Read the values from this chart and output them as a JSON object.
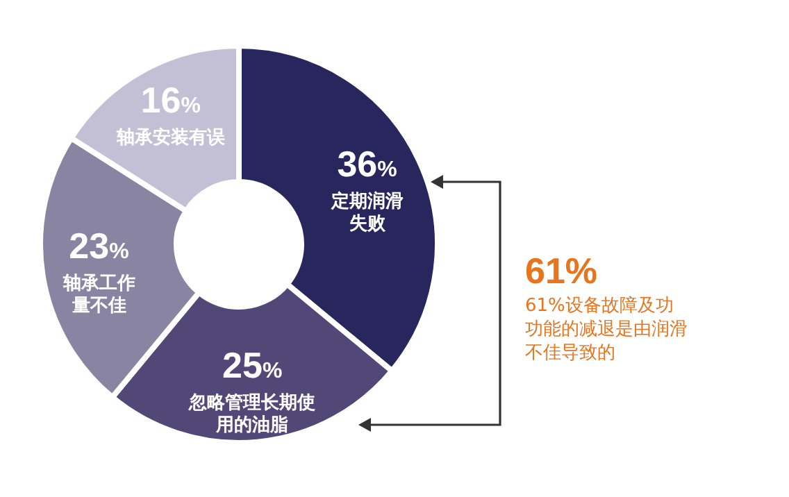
{
  "chart_data": {
    "type": "donut",
    "categories": [
      "定期润滑失败",
      "忽略管理长期使用的油脂",
      "轴承工作量不佳",
      "轴承安装有误"
    ],
    "values": [
      36,
      25,
      23,
      16
    ],
    "value_labels": [
      "36%",
      "25%",
      "23%",
      "16%"
    ],
    "colors": [
      "#27275e",
      "#514878",
      "#8a84a3",
      "#c3bfd4"
    ],
    "annotations": [
      "61%",
      "61%设备故障及功功能的减退是由润滑不佳导致的"
    ]
  }
}
